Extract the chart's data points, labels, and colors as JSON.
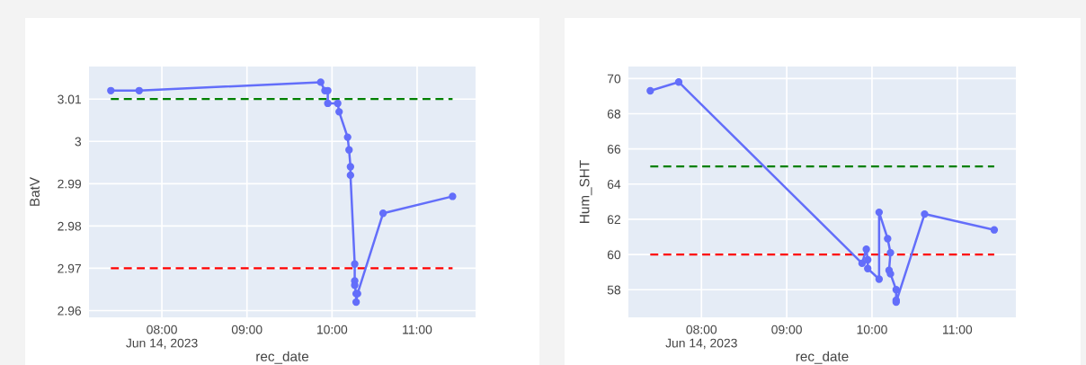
{
  "chart_data": [
    {
      "type": "line",
      "xlabel": "rec_date",
      "ylabel": "BatV",
      "grid": true,
      "marker": "circle",
      "xlim": [
        "2023-06-14T07:08:36",
        "2023-06-14T11:41:14"
      ],
      "ylim": [
        2.9584,
        3.0177
      ],
      "xticks": [
        {
          "value": "2023-06-14T08:00",
          "label": "08:00\nJun 14, 2023"
        },
        {
          "value": "2023-06-14T09:00",
          "label": "09:00"
        },
        {
          "value": "2023-06-14T10:00",
          "label": "10:00"
        },
        {
          "value": "2023-06-14T11:00",
          "label": "11:00"
        }
      ],
      "yticks": [
        2.96,
        2.97,
        2.98,
        2.99,
        {
          "value": 3.0,
          "label": "3"
        },
        3.01
      ],
      "series": [
        {
          "color": "#636efa",
          "x": [
            "2023-06-14T07:24",
            "2023-06-14T07:44",
            "2023-06-14T09:52",
            "2023-06-14T09:55",
            "2023-06-14T09:57",
            "2023-06-14T09:57",
            "2023-06-14T10:04",
            "2023-06-14T10:05",
            "2023-06-14T10:11",
            "2023-06-14T10:12",
            "2023-06-14T10:13",
            "2023-06-14T10:13",
            "2023-06-14T10:16",
            "2023-06-14T10:16",
            "2023-06-14T10:16",
            "2023-06-14T10:17",
            "2023-06-14T10:17",
            "2023-06-14T10:18",
            "2023-06-14T10:36",
            "2023-06-14T11:25"
          ],
          "values": [
            3.012,
            3.012,
            3.014,
            3.012,
            3.012,
            3.009,
            3.009,
            3.007,
            3.001,
            2.998,
            2.994,
            2.992,
            2.971,
            2.967,
            2.966,
            2.964,
            2.962,
            2.964,
            2.983,
            2.987
          ]
        },
        {
          "color": "#008000",
          "line_style": "dashed",
          "marker": "none",
          "x": [
            "2023-06-14T07:24",
            "2023-06-14T11:25"
          ],
          "values": [
            3.01,
            3.01
          ]
        },
        {
          "color": "#ff0000",
          "line_style": "dashed",
          "marker": "none",
          "x": [
            "2023-06-14T07:24",
            "2023-06-14T11:25"
          ],
          "values": [
            2.97,
            2.97
          ]
        }
      ]
    },
    {
      "type": "line",
      "xlabel": "rec_date",
      "ylabel": "Hum_SHT",
      "grid": true,
      "marker": "circle",
      "xlim": [
        "2023-06-14T07:08:36",
        "2023-06-14T11:41:14"
      ],
      "ylim": [
        56.43,
        70.68
      ],
      "xticks": [
        {
          "value": "2023-06-14T08:00",
          "label": "08:00\nJun 14, 2023"
        },
        {
          "value": "2023-06-14T09:00",
          "label": "09:00"
        },
        {
          "value": "2023-06-14T10:00",
          "label": "10:00"
        },
        {
          "value": "2023-06-14T11:00",
          "label": "11:00"
        }
      ],
      "yticks": [
        58,
        60,
        62,
        64,
        66,
        68,
        70
      ],
      "series": [
        {
          "color": "#636efa",
          "x": [
            "2023-06-14T07:24",
            "2023-06-14T07:44",
            "2023-06-14T09:53",
            "2023-06-14T09:56",
            "2023-06-14T09:57",
            "2023-06-14T09:57",
            "2023-06-14T10:05",
            "2023-06-14T10:05",
            "2023-06-14T10:11",
            "2023-06-14T10:13",
            "2023-06-14T10:12",
            "2023-06-14T10:13",
            "2023-06-14T10:17",
            "2023-06-14T10:17",
            "2023-06-14T10:17",
            "2023-06-14T10:37",
            "2023-06-14T11:26"
          ],
          "values": [
            69.3,
            69.8,
            59.5,
            60.3,
            59.7,
            59.2,
            58.6,
            62.4,
            60.9,
            60.1,
            59.1,
            58.9,
            58.0,
            57.4,
            57.3,
            62.3,
            61.4
          ]
        },
        {
          "color": "#008000",
          "line_style": "dashed",
          "marker": "none",
          "x": [
            "2023-06-14T07:24",
            "2023-06-14T11:26"
          ],
          "values": [
            65,
            65
          ]
        },
        {
          "color": "#ff0000",
          "line_style": "dashed",
          "marker": "none",
          "x": [
            "2023-06-14T07:24",
            "2023-06-14T11:26"
          ],
          "values": [
            60,
            60
          ]
        }
      ]
    }
  ]
}
